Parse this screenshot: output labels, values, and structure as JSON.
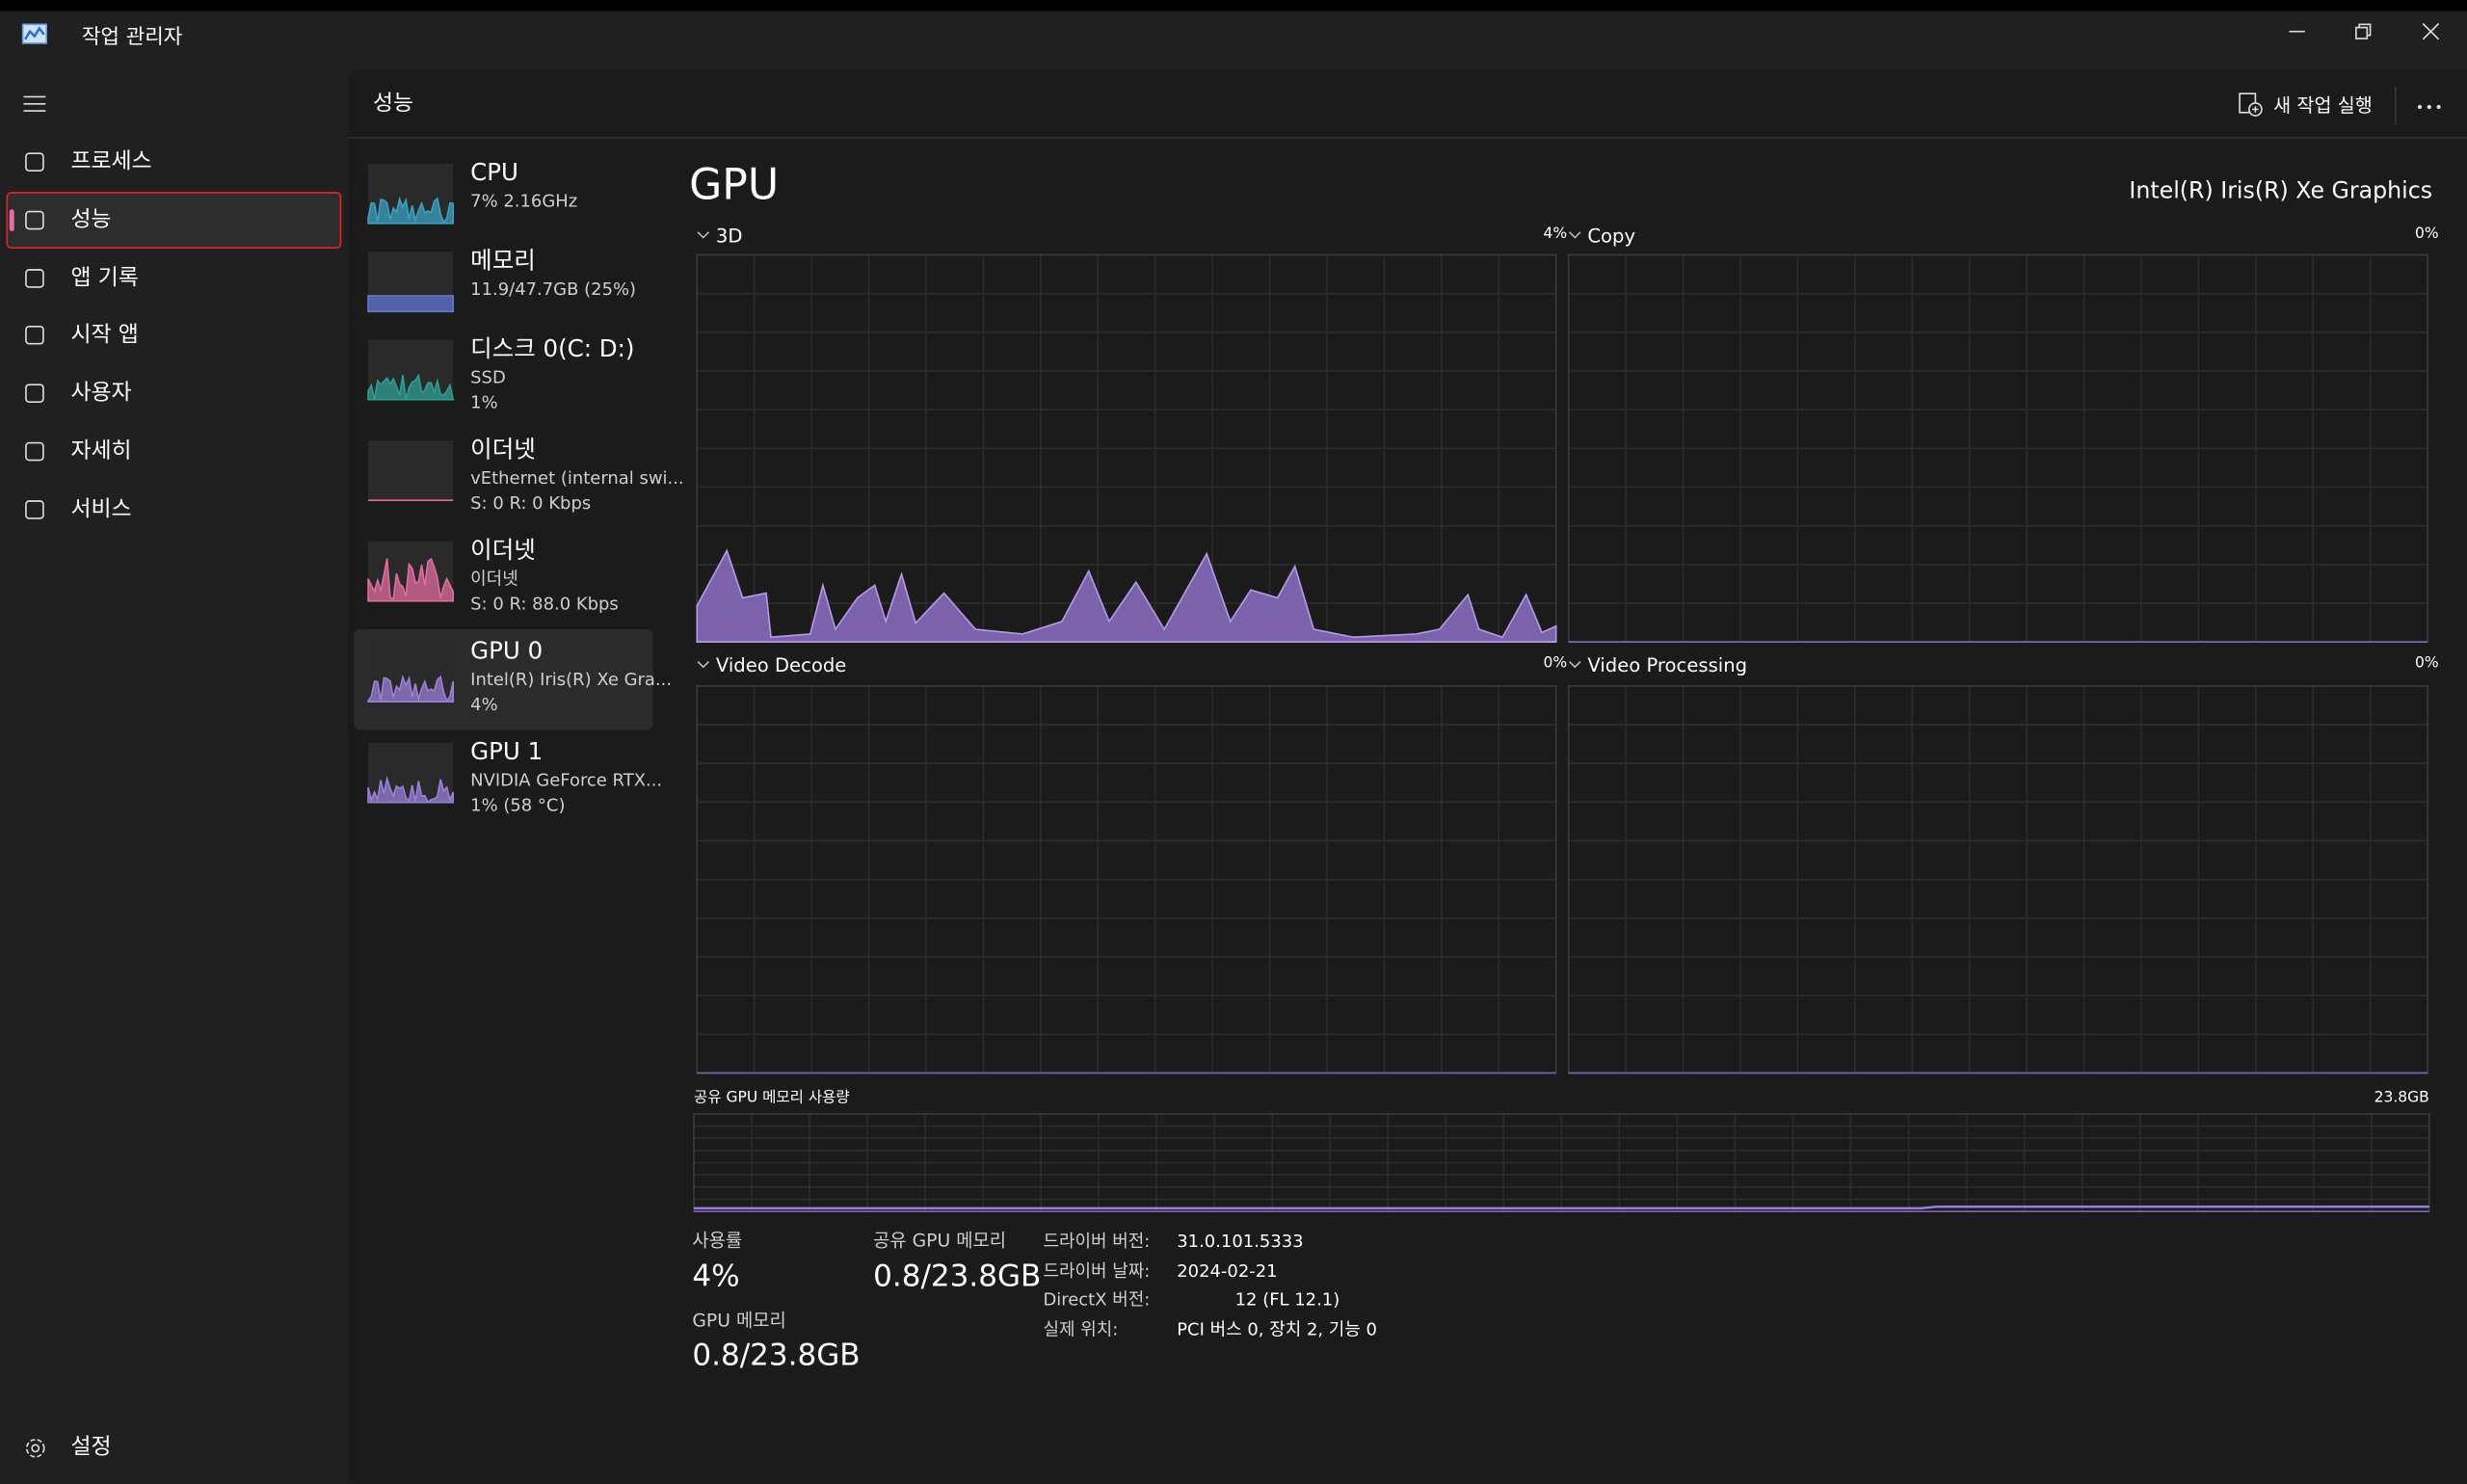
{
  "window": {
    "title": "작업 관리자"
  },
  "nav": {
    "items": [
      "프로세스",
      "성능",
      "앱 기록",
      "시작 앱",
      "사용자",
      "자세히",
      "서비스"
    ],
    "settings": "설정"
  },
  "header": {
    "title": "성능",
    "run_new_task": "새 작업 실행"
  },
  "devices": [
    {
      "name": "CPU",
      "lines": [
        "7% 2.16GHz"
      ]
    },
    {
      "name": "메모리",
      "lines": [
        "11.9/47.7GB (25%)"
      ]
    },
    {
      "name": "디스크 0(C: D:)",
      "lines": [
        "SSD",
        "1%"
      ]
    },
    {
      "name": "이더넷",
      "lines": [
        "vEthernet (internal swi...",
        "S: 0  R: 0 Kbps"
      ]
    },
    {
      "name": "이더넷",
      "lines": [
        "이더넷",
        "S: 0  R: 88.0 Kbps"
      ]
    },
    {
      "name": "GPU 0",
      "lines": [
        "Intel(R) Iris(R) Xe Gra...",
        "4%"
      ]
    },
    {
      "name": "GPU 1",
      "lines": [
        "NVIDIA GeForce RTX...",
        "1% (58 °C)"
      ]
    }
  ],
  "detail": {
    "title": "GPU",
    "adapter": "Intel(R) Iris(R) Xe Graphics",
    "graphs": [
      {
        "label": "3D",
        "value": "4%"
      },
      {
        "label": "Copy",
        "value": "0%"
      },
      {
        "label": "Video Decode",
        "value": "0%"
      },
      {
        "label": "Video Processing",
        "value": "0%"
      }
    ],
    "shared_memory_graph": {
      "label": "공유 GPU 메모리 사용량",
      "max": "23.8GB"
    },
    "stats": [
      {
        "label": "사용률",
        "value": "4%"
      },
      {
        "label": "공유 GPU 메모리",
        "value": "0.8/23.8GB"
      },
      {
        "label": "GPU 메모리",
        "value": "0.8/23.8GB"
      }
    ],
    "properties": [
      {
        "label": "드라이버 버전:",
        "value": "31.0.101.5333"
      },
      {
        "label": "드라이버 날짜:",
        "value": "2024-02-21"
      },
      {
        "label": "DirectX 버전:",
        "value": "12 (FL 12.1)"
      },
      {
        "label": "실제 위치:",
        "value": "PCI 버스 0, 장치 2, 기능 0"
      }
    ]
  }
}
